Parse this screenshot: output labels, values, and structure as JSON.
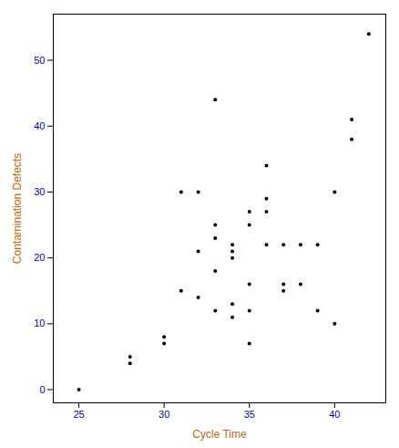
{
  "chart_data": {
    "type": "scatter",
    "x": [
      25,
      28,
      28,
      30,
      30,
      31,
      31,
      32,
      32,
      32,
      33,
      33,
      33,
      33,
      33,
      34,
      34,
      34,
      34,
      34,
      35,
      35,
      35,
      35,
      35,
      36,
      36,
      36,
      36,
      37,
      37,
      37,
      38,
      38,
      39,
      39,
      40,
      40,
      41,
      41,
      42
    ],
    "y": [
      0,
      5,
      4,
      7,
      8,
      30,
      15,
      14,
      21,
      30,
      25,
      23,
      18,
      12,
      44,
      11,
      20,
      21,
      22,
      13,
      27,
      25,
      16,
      12,
      7,
      34,
      29,
      27,
      22,
      22,
      16,
      15,
      22,
      16,
      22,
      12,
      30,
      10,
      41,
      38,
      54
    ],
    "xlabel": "Cycle Time",
    "ylabel": "Contamination Defects",
    "xlim": [
      23.5,
      43
    ],
    "ylim": [
      -2,
      57
    ],
    "xticks": [
      25,
      30,
      35,
      40
    ],
    "yticks": [
      0,
      10,
      20,
      30,
      40,
      50
    ],
    "color": "black"
  }
}
